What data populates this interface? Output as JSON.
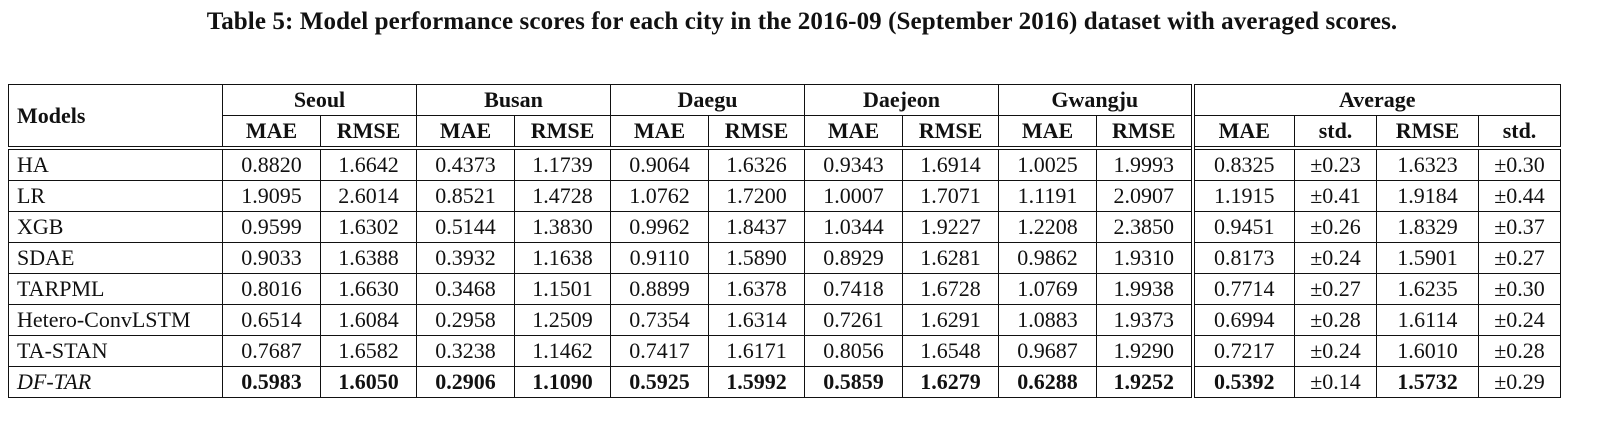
{
  "caption": "Table 5: Model performance scores for each city in the 2016-09 (September 2016) dataset with averaged scores.",
  "header": {
    "models": "Models",
    "groups": [
      "Seoul",
      "Busan",
      "Daegu",
      "Daejeon",
      "Gwangju",
      "Average"
    ],
    "sub_city": [
      "MAE",
      "RMSE"
    ],
    "sub_avg": [
      "MAE",
      "std.",
      "RMSE",
      "std."
    ]
  },
  "rows": [
    {
      "model": "HA",
      "cells": [
        "0.8820",
        "1.6642",
        "0.4373",
        "1.1739",
        "0.9064",
        "1.6326",
        "0.9343",
        "1.6914",
        "1.0025",
        "1.9993",
        "0.8325",
        "±0.23",
        "1.6323",
        "±0.30"
      ]
    },
    {
      "model": "LR",
      "cells": [
        "1.9095",
        "2.6014",
        "0.8521",
        "1.4728",
        "1.0762",
        "1.7200",
        "1.0007",
        "1.7071",
        "1.1191",
        "2.0907",
        "1.1915",
        "±0.41",
        "1.9184",
        "±0.44"
      ]
    },
    {
      "model": "XGB",
      "cells": [
        "0.9599",
        "1.6302",
        "0.5144",
        "1.3830",
        "0.9962",
        "1.8437",
        "1.0344",
        "1.9227",
        "1.2208",
        "2.3850",
        "0.9451",
        "±0.26",
        "1.8329",
        "±0.37"
      ]
    },
    {
      "model": "SDAE",
      "cells": [
        "0.9033",
        "1.6388",
        "0.3932",
        "1.1638",
        "0.9110",
        "1.5890",
        "0.8929",
        "1.6281",
        "0.9862",
        "1.9310",
        "0.8173",
        "±0.24",
        "1.5901",
        "±0.27"
      ]
    },
    {
      "model": "TARPML",
      "cells": [
        "0.8016",
        "1.6630",
        "0.3468",
        "1.1501",
        "0.8899",
        "1.6378",
        "0.7418",
        "1.6728",
        "1.0769",
        "1.9938",
        "0.7714",
        "±0.27",
        "1.6235",
        "±0.30"
      ]
    },
    {
      "model": "Hetero-ConvLSTM",
      "cells": [
        "0.6514",
        "1.6084",
        "0.2958",
        "1.2509",
        "0.7354",
        "1.6314",
        "0.7261",
        "1.6291",
        "1.0883",
        "1.9373",
        "0.6994",
        "±0.28",
        "1.6114",
        "±0.24"
      ]
    },
    {
      "model": "TA-STAN",
      "cells": [
        "0.7687",
        "1.6582",
        "0.3238",
        "1.1462",
        "0.7417",
        "1.6171",
        "0.8056",
        "1.6548",
        "0.9687",
        "1.9290",
        "0.7217",
        "±0.24",
        "1.6010",
        "±0.28"
      ]
    },
    {
      "model": "DF-TAR",
      "cells": [
        "0.5983",
        "1.6050",
        "0.2906",
        "1.1090",
        "0.5925",
        "1.5992",
        "0.5859",
        "1.6279",
        "0.6288",
        "1.9252",
        "0.5392",
        "±0.14",
        "1.5732",
        "±0.29"
      ]
    }
  ]
}
